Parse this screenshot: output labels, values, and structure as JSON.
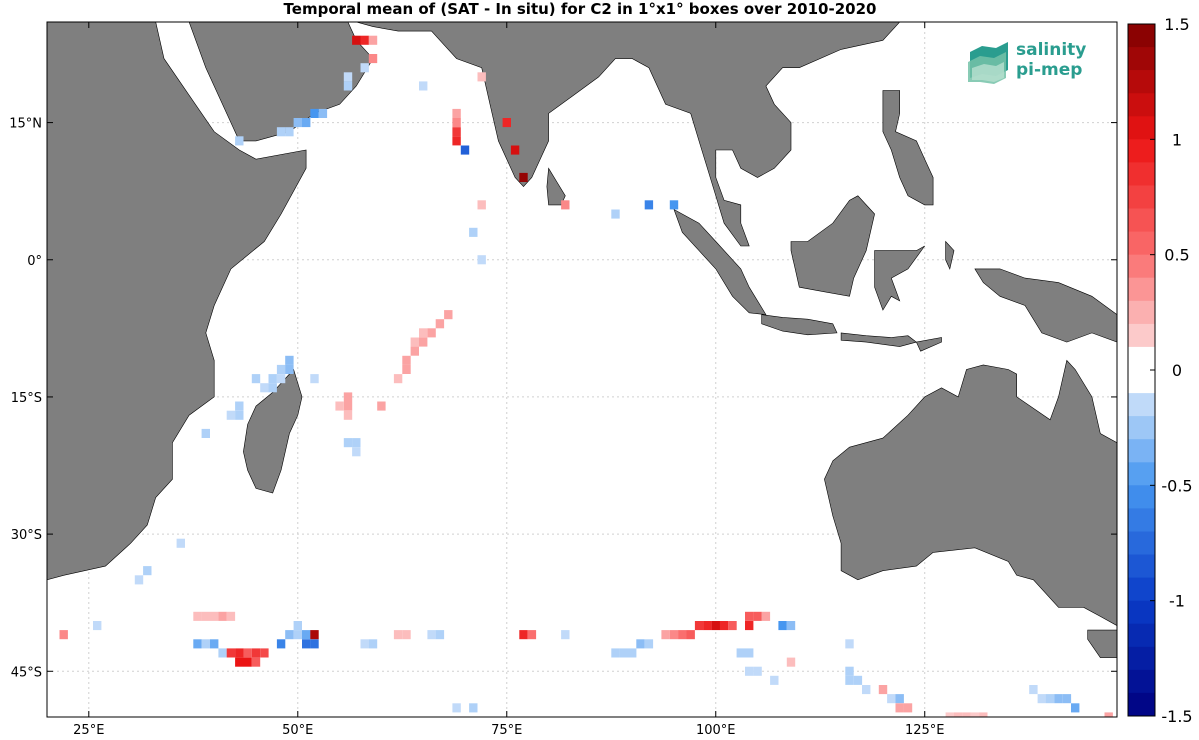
{
  "chart_data": {
    "type": "heatmap",
    "title": "Temporal mean of (SAT - In situ) for C2 in 1°x1° boxes over 2010-2020",
    "xlim": [
      20,
      148
    ],
    "ylim": [
      -50,
      26
    ],
    "xticks": [
      {
        "value": 25,
        "label": "25°E"
      },
      {
        "value": 50,
        "label": "50°E"
      },
      {
        "value": 75,
        "label": "75°E"
      },
      {
        "value": 100,
        "label": "100°E"
      },
      {
        "value": 125,
        "label": "125°E"
      }
    ],
    "yticks": [
      {
        "value": 15,
        "label": "15°N"
      },
      {
        "value": 0,
        "label": "0°"
      },
      {
        "value": -15,
        "label": "15°S"
      },
      {
        "value": -30,
        "label": "30°S"
      },
      {
        "value": -45,
        "label": "45°S"
      }
    ],
    "grid": true,
    "colorbar": {
      "range": [
        -1.5,
        1.5
      ],
      "ticks": [
        "1.5",
        "1",
        "0.5",
        "0",
        "-0.5",
        "-1",
        "-1.5"
      ],
      "low_color": "#000080",
      "mid_color": "#ffffff",
      "high_color": "#800000"
    },
    "cells": [
      {
        "lon": 57,
        "lat": 24,
        "v": 1.1
      },
      {
        "lon": 58,
        "lat": 24,
        "v": 0.9
      },
      {
        "lon": 59,
        "lat": 24,
        "v": 0.3
      },
      {
        "lon": 59,
        "lat": 22,
        "v": 0.4
      },
      {
        "lon": 58,
        "lat": 21,
        "v": -0.15
      },
      {
        "lon": 56,
        "lat": 20,
        "v": -0.15
      },
      {
        "lon": 56,
        "lat": 19,
        "v": -0.2
      },
      {
        "lon": 53,
        "lat": 16,
        "v": -0.3
      },
      {
        "lon": 52,
        "lat": 16,
        "v": -0.5
      },
      {
        "lon": 51,
        "lat": 15,
        "v": -0.4
      },
      {
        "lon": 50,
        "lat": 15,
        "v": -0.3
      },
      {
        "lon": 49,
        "lat": 14,
        "v": -0.2
      },
      {
        "lon": 48,
        "lat": 14,
        "v": -0.2
      },
      {
        "lon": 43,
        "lat": 13,
        "v": -0.2
      },
      {
        "lon": 65,
        "lat": 19,
        "v": -0.15
      },
      {
        "lon": 72,
        "lat": 20,
        "v": 0.2
      },
      {
        "lon": 69,
        "lat": 16,
        "v": 0.3
      },
      {
        "lon": 69,
        "lat": 15,
        "v": 0.4
      },
      {
        "lon": 69,
        "lat": 14,
        "v": 0.8
      },
      {
        "lon": 69,
        "lat": 13,
        "v": 0.9
      },
      {
        "lon": 70,
        "lat": 12,
        "v": -0.8
      },
      {
        "lon": 75,
        "lat": 15,
        "v": 0.9
      },
      {
        "lon": 76,
        "lat": 12,
        "v": 1.1
      },
      {
        "lon": 77,
        "lat": 9,
        "v": 1.4
      },
      {
        "lon": 72,
        "lat": 6,
        "v": 0.2
      },
      {
        "lon": 82,
        "lat": 6,
        "v": 0.4
      },
      {
        "lon": 88,
        "lat": 5,
        "v": -0.2
      },
      {
        "lon": 92,
        "lat": 6,
        "v": -0.6
      },
      {
        "lon": 95,
        "lat": 6,
        "v": -0.5
      },
      {
        "lon": 71,
        "lat": 3,
        "v": -0.2
      },
      {
        "lon": 72,
        "lat": 0,
        "v": -0.15
      },
      {
        "lon": 68,
        "lat": -6,
        "v": 0.3
      },
      {
        "lon": 67,
        "lat": -7,
        "v": 0.3
      },
      {
        "lon": 66,
        "lat": -8,
        "v": 0.3
      },
      {
        "lon": 65,
        "lat": -8,
        "v": 0.2
      },
      {
        "lon": 65,
        "lat": -9,
        "v": 0.3
      },
      {
        "lon": 64,
        "lat": -9,
        "v": 0.2
      },
      {
        "lon": 64,
        "lat": -10,
        "v": 0.3
      },
      {
        "lon": 63,
        "lat": -11,
        "v": 0.3
      },
      {
        "lon": 63,
        "lat": -12,
        "v": 0.3
      },
      {
        "lon": 62,
        "lat": -13,
        "v": 0.2
      },
      {
        "lon": 49,
        "lat": -11,
        "v": -0.3
      },
      {
        "lon": 48,
        "lat": -12,
        "v": -0.2
      },
      {
        "lon": 49,
        "lat": -12,
        "v": -0.3
      },
      {
        "lon": 47,
        "lat": -13,
        "v": -0.2
      },
      {
        "lon": 47,
        "lat": -14,
        "v": -0.2
      },
      {
        "lon": 48,
        "lat": -13,
        "v": -0.15
      },
      {
        "lon": 45,
        "lat": -13,
        "v": -0.2
      },
      {
        "lon": 46,
        "lat": -14,
        "v": -0.15
      },
      {
        "lon": 52,
        "lat": -13,
        "v": -0.15
      },
      {
        "lon": 56,
        "lat": -15,
        "v": 0.3
      },
      {
        "lon": 56,
        "lat": -16,
        "v": 0.3
      },
      {
        "lon": 56,
        "lat": -17,
        "v": 0.2
      },
      {
        "lon": 55,
        "lat": -16,
        "v": 0.2
      },
      {
        "lon": 60,
        "lat": -16,
        "v": 0.3
      },
      {
        "lon": 43,
        "lat": -16,
        "v": -0.2
      },
      {
        "lon": 42,
        "lat": -17,
        "v": -0.15
      },
      {
        "lon": 43,
        "lat": -17,
        "v": -0.2
      },
      {
        "lon": 39,
        "lat": -19,
        "v": -0.2
      },
      {
        "lon": 56,
        "lat": -20,
        "v": -0.2
      },
      {
        "lon": 57,
        "lat": -20,
        "v": -0.2
      },
      {
        "lon": 57,
        "lat": -21,
        "v": -0.15
      },
      {
        "lon": 36,
        "lat": -31,
        "v": -0.15
      },
      {
        "lon": 32,
        "lat": -34,
        "v": -0.2
      },
      {
        "lon": 31,
        "lat": -35,
        "v": -0.15
      },
      {
        "lon": 26,
        "lat": -40,
        "v": -0.15
      },
      {
        "lon": 22,
        "lat": -41,
        "v": 0.4
      },
      {
        "lon": 38,
        "lat": -39,
        "v": 0.2
      },
      {
        "lon": 39,
        "lat": -39,
        "v": 0.2
      },
      {
        "lon": 40,
        "lat": -39,
        "v": 0.2
      },
      {
        "lon": 41,
        "lat": -39,
        "v": 0.3
      },
      {
        "lon": 42,
        "lat": -39,
        "v": 0.2
      },
      {
        "lon": 38,
        "lat": -42,
        "v": -0.4
      },
      {
        "lon": 39,
        "lat": -42,
        "v": -0.2
      },
      {
        "lon": 40,
        "lat": -42,
        "v": -0.4
      },
      {
        "lon": 41,
        "lat": -43,
        "v": -0.2
      },
      {
        "lon": 42,
        "lat": -43,
        "v": 0.8
      },
      {
        "lon": 43,
        "lat": -43,
        "v": 0.9
      },
      {
        "lon": 44,
        "lat": -43,
        "v": 0.6
      },
      {
        "lon": 45,
        "lat": -43,
        "v": 0.8
      },
      {
        "lon": 43,
        "lat": -44,
        "v": 1.0
      },
      {
        "lon": 44,
        "lat": -44,
        "v": 1.0
      },
      {
        "lon": 45,
        "lat": -44,
        "v": 0.6
      },
      {
        "lon": 46,
        "lat": -43,
        "v": 0.7
      },
      {
        "lon": 48,
        "lat": -42,
        "v": -0.6
      },
      {
        "lon": 49,
        "lat": -41,
        "v": -0.3
      },
      {
        "lon": 50,
        "lat": -40,
        "v": -0.2
      },
      {
        "lon": 50,
        "lat": -41,
        "v": -0.2
      },
      {
        "lon": 51,
        "lat": -41,
        "v": -0.4
      },
      {
        "lon": 51,
        "lat": -42,
        "v": -0.7
      },
      {
        "lon": 52,
        "lat": -42,
        "v": -0.7
      },
      {
        "lon": 52,
        "lat": -41,
        "v": 1.3
      },
      {
        "lon": 58,
        "lat": -42,
        "v": -0.15
      },
      {
        "lon": 59,
        "lat": -42,
        "v": -0.2
      },
      {
        "lon": 62,
        "lat": -41,
        "v": 0.2
      },
      {
        "lon": 63,
        "lat": -41,
        "v": 0.2
      },
      {
        "lon": 66,
        "lat": -41,
        "v": -0.15
      },
      {
        "lon": 67,
        "lat": -41,
        "v": -0.2
      },
      {
        "lon": 77,
        "lat": -41,
        "v": 0.9
      },
      {
        "lon": 78,
        "lat": -41,
        "v": 0.5
      },
      {
        "lon": 82,
        "lat": -41,
        "v": -0.15
      },
      {
        "lon": 88,
        "lat": -43,
        "v": -0.2
      },
      {
        "lon": 89,
        "lat": -43,
        "v": -0.2
      },
      {
        "lon": 90,
        "lat": -43,
        "v": -0.2
      },
      {
        "lon": 91,
        "lat": -42,
        "v": -0.3
      },
      {
        "lon": 92,
        "lat": -42,
        "v": -0.2
      },
      {
        "lon": 94,
        "lat": -41,
        "v": 0.3
      },
      {
        "lon": 95,
        "lat": -41,
        "v": 0.4
      },
      {
        "lon": 96,
        "lat": -41,
        "v": 0.5
      },
      {
        "lon": 97,
        "lat": -41,
        "v": 0.6
      },
      {
        "lon": 98,
        "lat": -40,
        "v": 0.8
      },
      {
        "lon": 99,
        "lat": -40,
        "v": 0.9
      },
      {
        "lon": 100,
        "lat": -40,
        "v": 1.1
      },
      {
        "lon": 101,
        "lat": -40,
        "v": 0.9
      },
      {
        "lon": 102,
        "lat": -40,
        "v": 0.6
      },
      {
        "lon": 104,
        "lat": -40,
        "v": 0.9
      },
      {
        "lon": 104,
        "lat": -39,
        "v": 0.6
      },
      {
        "lon": 105,
        "lat": -39,
        "v": 0.6
      },
      {
        "lon": 106,
        "lat": -39,
        "v": 0.3
      },
      {
        "lon": 108,
        "lat": -40,
        "v": -0.5
      },
      {
        "lon": 109,
        "lat": -40,
        "v": -0.3
      },
      {
        "lon": 103,
        "lat": -43,
        "v": -0.2
      },
      {
        "lon": 104,
        "lat": -43,
        "v": -0.2
      },
      {
        "lon": 104,
        "lat": -45,
        "v": -0.15
      },
      {
        "lon": 105,
        "lat": -45,
        "v": -0.15
      },
      {
        "lon": 107,
        "lat": -46,
        "v": -0.15
      },
      {
        "lon": 109,
        "lat": -44,
        "v": 0.2
      },
      {
        "lon": 116,
        "lat": -42,
        "v": -0.15
      },
      {
        "lon": 116,
        "lat": -45,
        "v": -0.2
      },
      {
        "lon": 116,
        "lat": -46,
        "v": -0.2
      },
      {
        "lon": 117,
        "lat": -46,
        "v": -0.2
      },
      {
        "lon": 118,
        "lat": -47,
        "v": -0.15
      },
      {
        "lon": 120,
        "lat": -47,
        "v": 0.3
      },
      {
        "lon": 121,
        "lat": -48,
        "v": -0.15
      },
      {
        "lon": 122,
        "lat": -48,
        "v": -0.3
      },
      {
        "lon": 122,
        "lat": -49,
        "v": 0.3
      },
      {
        "lon": 123,
        "lat": -49,
        "v": 0.3
      },
      {
        "lon": 128,
        "lat": -50,
        "v": 0.15
      },
      {
        "lon": 129,
        "lat": -50,
        "v": 0.2
      },
      {
        "lon": 130,
        "lat": -50,
        "v": 0.2
      },
      {
        "lon": 131,
        "lat": -50,
        "v": 0.15
      },
      {
        "lon": 132,
        "lat": -50,
        "v": 0.2
      },
      {
        "lon": 138,
        "lat": -47,
        "v": -0.15
      },
      {
        "lon": 139,
        "lat": -48,
        "v": -0.15
      },
      {
        "lon": 140,
        "lat": -48,
        "v": -0.2
      },
      {
        "lon": 141,
        "lat": -48,
        "v": -0.3
      },
      {
        "lon": 142,
        "lat": -48,
        "v": -0.3
      },
      {
        "lon": 143,
        "lat": -49,
        "v": -0.4
      },
      {
        "lon": 147,
        "lat": -50,
        "v": 0.3
      },
      {
        "lon": 69,
        "lat": -49,
        "v": -0.15
      },
      {
        "lon": 71,
        "lat": -49,
        "v": -0.2
      }
    ]
  },
  "logo": {
    "line1": "salinity",
    "line2": "pi-mep"
  },
  "colors": {
    "land": "#7f7f7f",
    "grid": "#d0d0d0"
  }
}
